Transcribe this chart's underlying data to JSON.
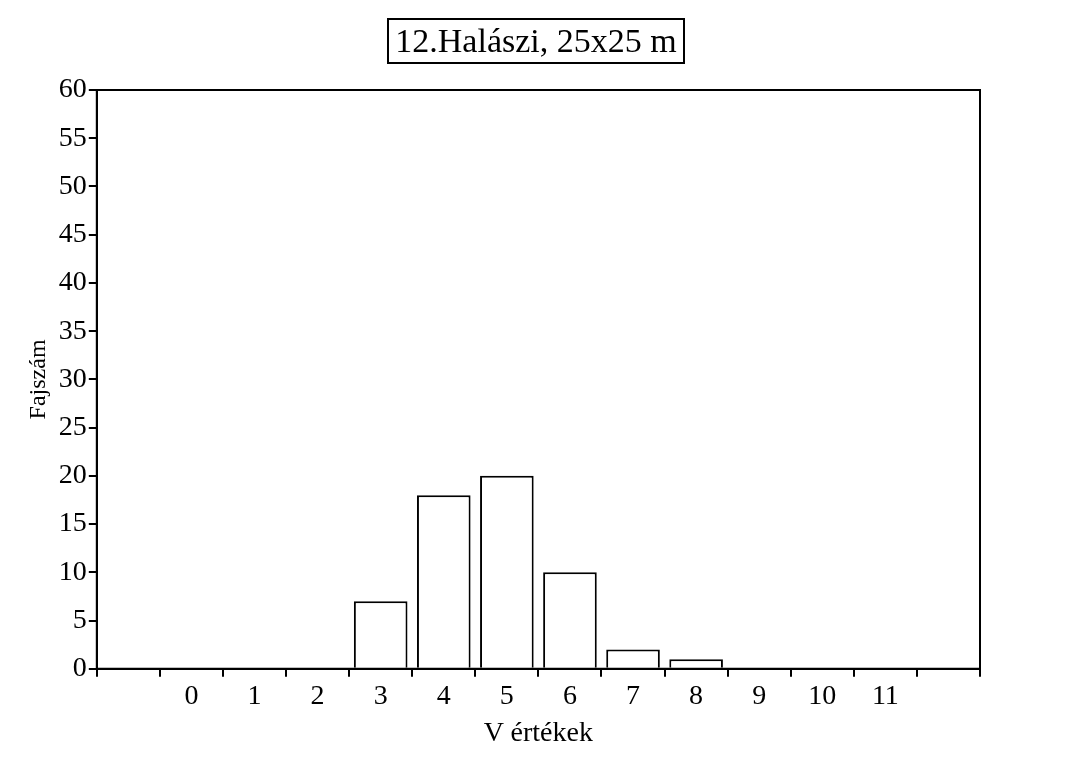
{
  "chart_data": {
    "type": "bar",
    "title": "12.Halászi, 25x25  m",
    "xlabel": "V értékek",
    "ylabel": "Fajszám",
    "categories": [
      null,
      "0",
      "1",
      "2",
      "3",
      "4",
      "5",
      "6",
      "7",
      "8",
      "9",
      "10",
      "11",
      null
    ],
    "values": [
      null,
      0,
      0,
      0,
      7,
      18,
      20,
      10,
      2,
      1,
      0,
      0,
      0,
      null
    ],
    "color": "#ffffff",
    "ylim": [
      0,
      60
    ],
    "yticks": [
      0,
      5,
      10,
      15,
      20,
      25,
      30,
      35,
      40,
      45,
      50,
      55,
      60
    ],
    "grid": false,
    "legend": false
  }
}
